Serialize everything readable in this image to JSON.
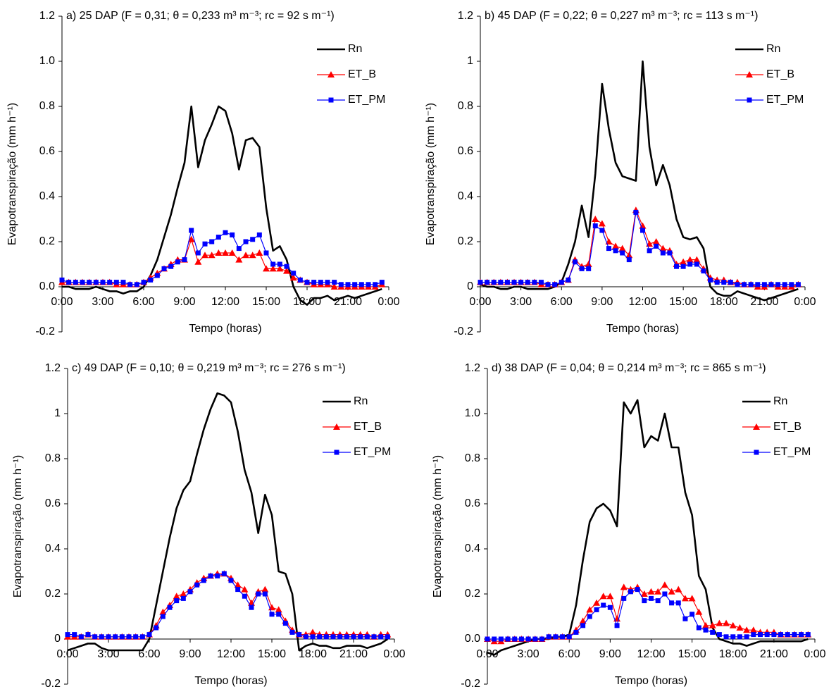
{
  "chart_data": [
    {
      "type": "line",
      "title": "a) 25 DAP (F = 0,31; θ = 0,233 m³ m⁻³; rc = 92 s m⁻¹)",
      "xlabel": "Tempo (horas)",
      "ylabel": "Evapotranspiração (mm h⁻¹)",
      "x": [
        0,
        0.5,
        1,
        1.5,
        2,
        2.5,
        3,
        3.5,
        4,
        4.5,
        5,
        5.5,
        6,
        6.5,
        7,
        7.5,
        8,
        8.5,
        9,
        9.5,
        10,
        10.5,
        11,
        11.5,
        12,
        12.5,
        13,
        13.5,
        14,
        14.5,
        15,
        15.5,
        16,
        16.5,
        17,
        17.5,
        18,
        18.5,
        19,
        19.5,
        20,
        20.5,
        21,
        21.5,
        22,
        22.5,
        23,
        23.5
      ],
      "xlim": [
        0,
        24
      ],
      "xticks": [
        {
          "value": 0,
          "label": "0:00"
        },
        {
          "value": 3,
          "label": "3:00"
        },
        {
          "value": 6,
          "label": "6:00"
        },
        {
          "value": 9,
          "label": "9:00"
        },
        {
          "value": 12,
          "label": "12:00"
        },
        {
          "value": 15,
          "label": "15:00"
        },
        {
          "value": 18,
          "label": "18:00"
        },
        {
          "value": 21,
          "label": "21:00"
        },
        {
          "value": 24,
          "label": "0:00"
        }
      ],
      "ylim": [
        -0.2,
        1.2
      ],
      "yticks": [
        -0.2,
        {
          "value": 0,
          "label": "0.0"
        },
        0.2,
        0.4,
        0.6,
        0.8,
        {
          "value": 1,
          "label": "1.0"
        },
        1.2
      ],
      "series": [
        {
          "name": "Rn",
          "color": "#000000",
          "marker": "none",
          "values": [
            0,
            0,
            -0.01,
            -0.01,
            -0.01,
            0,
            -0.01,
            -0.02,
            -0.02,
            -0.03,
            -0.02,
            -0.02,
            0,
            0.05,
            0.12,
            0.22,
            0.32,
            0.44,
            0.55,
            0.8,
            0.53,
            0.65,
            0.72,
            0.8,
            0.78,
            0.68,
            0.52,
            0.65,
            0.66,
            0.62,
            0.35,
            0.16,
            0.18,
            0.12,
            0,
            -0.06,
            -0.08,
            -0.05,
            -0.05,
            -0.04,
            -0.06,
            -0.05,
            -0.04,
            -0.05,
            -0.04,
            -0.03,
            -0.02,
            -0.01
          ]
        },
        {
          "name": "ET_B",
          "color": "#ff0000",
          "marker": "triangle",
          "values": [
            0.02,
            0.02,
            0.02,
            0.02,
            0.02,
            0.02,
            0.02,
            0.02,
            0.01,
            0.01,
            0.01,
            0.01,
            0.02,
            0.04,
            0.06,
            0.08,
            0.1,
            0.12,
            0.12,
            0.21,
            0.11,
            0.14,
            0.14,
            0.15,
            0.15,
            0.15,
            0.12,
            0.14,
            0.14,
            0.15,
            0.08,
            0.08,
            0.08,
            0.07,
            0.04,
            0.03,
            0.02,
            0.01,
            0.01,
            0.01,
            0,
            0,
            0,
            0,
            0,
            0,
            0,
            0.01
          ]
        },
        {
          "name": "ET_PM",
          "color": "#0000ff",
          "marker": "square",
          "values": [
            0.03,
            0.02,
            0.02,
            0.02,
            0.02,
            0.02,
            0.02,
            0.02,
            0.02,
            0.02,
            0.01,
            0.01,
            0.02,
            0.03,
            0.05,
            0.08,
            0.09,
            0.11,
            0.12,
            0.25,
            0.15,
            0.19,
            0.2,
            0.22,
            0.24,
            0.23,
            0.17,
            0.2,
            0.21,
            0.23,
            0.15,
            0.1,
            0.1,
            0.09,
            0.06,
            0.03,
            0.02,
            0.02,
            0.02,
            0.02,
            0.02,
            0.01,
            0.01,
            0.01,
            0.01,
            0.01,
            0.01,
            0.02
          ]
        }
      ]
    },
    {
      "type": "line",
      "title": "b) 45 DAP (F = 0,22; θ = 0,227 m³ m⁻³; rc = 113 s m⁻¹)",
      "xlabel": "Tempo (horas)",
      "ylabel": "Evapotranspiração (mm h⁻¹)",
      "x": [
        0,
        0.5,
        1,
        1.5,
        2,
        2.5,
        3,
        3.5,
        4,
        4.5,
        5,
        5.5,
        6,
        6.5,
        7,
        7.5,
        8,
        8.5,
        9,
        9.5,
        10,
        10.5,
        11,
        11.5,
        12,
        12.5,
        13,
        13.5,
        14,
        14.5,
        15,
        15.5,
        16,
        16.5,
        17,
        17.5,
        18,
        18.5,
        19,
        19.5,
        20,
        20.5,
        21,
        21.5,
        22,
        22.5,
        23,
        23.5
      ],
      "xlim": [
        0,
        24
      ],
      "xticks": [
        {
          "value": 0,
          "label": "0:00"
        },
        {
          "value": 3,
          "label": "3:00"
        },
        {
          "value": 6,
          "label": "6:00"
        },
        {
          "value": 9,
          "label": "9:00"
        },
        {
          "value": 12,
          "label": "12:00"
        },
        {
          "value": 15,
          "label": "15:00"
        },
        {
          "value": 18,
          "label": "18:00"
        },
        {
          "value": 21,
          "label": "21:00"
        },
        {
          "value": 24,
          "label": "0:00"
        }
      ],
      "ylim": [
        -0.2,
        1.2
      ],
      "yticks": [
        -0.2,
        0,
        0.2,
        0.4,
        0.6,
        0.8,
        1,
        1.2
      ],
      "series": [
        {
          "name": "Rn",
          "color": "#000000",
          "marker": "none",
          "values": [
            0.01,
            0,
            0,
            -0.01,
            -0.01,
            0,
            0,
            -0.01,
            -0.01,
            -0.01,
            -0.01,
            0,
            0.02,
            0.1,
            0.2,
            0.36,
            0.22,
            0.5,
            0.9,
            0.7,
            0.55,
            0.49,
            0.48,
            0.47,
            1,
            0.62,
            0.45,
            0.54,
            0.45,
            0.3,
            0.22,
            0.21,
            0.22,
            0.17,
            0,
            -0.03,
            -0.04,
            -0.04,
            -0.02,
            -0.03,
            -0.04,
            -0.05,
            -0.06,
            -0.05,
            -0.04,
            -0.03,
            -0.02,
            -0.01
          ]
        },
        {
          "name": "ET_B",
          "color": "#ff0000",
          "marker": "triangle",
          "values": [
            0.02,
            0.02,
            0.02,
            0.02,
            0.02,
            0.02,
            0.02,
            0.02,
            0.02,
            0.01,
            0.01,
            0.01,
            0.02,
            0.03,
            0.12,
            0.09,
            0.1,
            0.3,
            0.28,
            0.2,
            0.18,
            0.17,
            0.14,
            0.34,
            0.27,
            0.19,
            0.2,
            0.17,
            0.16,
            0.1,
            0.11,
            0.12,
            0.12,
            0.08,
            0.04,
            0.03,
            0.03,
            0.02,
            0.02,
            0.01,
            0.01,
            0,
            0,
            0.01,
            0,
            0,
            0,
            0.01
          ]
        },
        {
          "name": "ET_PM",
          "color": "#0000ff",
          "marker": "square",
          "values": [
            0.02,
            0.02,
            0.02,
            0.02,
            0.02,
            0.02,
            0.02,
            0.02,
            0.02,
            0.02,
            0.01,
            0.01,
            0.02,
            0.03,
            0.11,
            0.08,
            0.08,
            0.27,
            0.25,
            0.17,
            0.16,
            0.15,
            0.12,
            0.33,
            0.25,
            0.16,
            0.18,
            0.15,
            0.15,
            0.09,
            0.09,
            0.1,
            0.1,
            0.07,
            0.03,
            0.02,
            0.02,
            0.02,
            0.01,
            0.01,
            0.01,
            0.01,
            0.01,
            0.01,
            0.01,
            0.01,
            0.01,
            0.01
          ]
        }
      ]
    },
    {
      "type": "line",
      "title": "c) 49 DAP (F = 0,10; θ = 0,219 m³ m⁻³; rc = 276 s m⁻¹)",
      "xlabel": "Tempo (horas)",
      "ylabel": "Evapotranspiração (mm h⁻¹)",
      "x": [
        0,
        0.5,
        1,
        1.5,
        2,
        2.5,
        3,
        3.5,
        4,
        4.5,
        5,
        5.5,
        6,
        6.5,
        7,
        7.5,
        8,
        8.5,
        9,
        9.5,
        10,
        10.5,
        11,
        11.5,
        12,
        12.5,
        13,
        13.5,
        14,
        14.5,
        15,
        15.5,
        16,
        16.5,
        17,
        17.5,
        18,
        18.5,
        19,
        19.5,
        20,
        20.5,
        21,
        21.5,
        22,
        22.5,
        23,
        23.5
      ],
      "xlim": [
        0,
        24
      ],
      "xticks": [
        {
          "value": 0,
          "label": "0:00"
        },
        {
          "value": 3,
          "label": "3:00"
        },
        {
          "value": 6,
          "label": "6:00"
        },
        {
          "value": 9,
          "label": "9:00"
        },
        {
          "value": 12,
          "label": "12:00"
        },
        {
          "value": 15,
          "label": "15:00"
        },
        {
          "value": 18,
          "label": "18:00"
        },
        {
          "value": 21,
          "label": "21:00"
        },
        {
          "value": 24,
          "label": "0:00"
        }
      ],
      "ylim": [
        -0.2,
        1.2
      ],
      "yticks": [
        -0.2,
        0,
        0.2,
        0.4,
        0.6,
        0.8,
        1,
        1.2
      ],
      "series": [
        {
          "name": "Rn",
          "color": "#000000",
          "marker": "none",
          "values": [
            -0.05,
            -0.04,
            -0.03,
            -0.02,
            -0.02,
            -0.04,
            -0.05,
            -0.05,
            -0.05,
            -0.05,
            -0.05,
            -0.05,
            0,
            0.15,
            0.3,
            0.45,
            0.58,
            0.66,
            0.7,
            0.82,
            0.93,
            1.02,
            1.09,
            1.08,
            1.05,
            0.92,
            0.75,
            0.65,
            0.47,
            0.64,
            0.55,
            0.3,
            0.29,
            0.2,
            -0.05,
            -0.03,
            -0.02,
            -0.03,
            -0.03,
            -0.04,
            -0.04,
            -0.03,
            -0.03,
            -0.03,
            -0.04,
            -0.03,
            -0.02,
            0
          ]
        },
        {
          "name": "ET_B",
          "color": "#ff0000",
          "marker": "triangle",
          "values": [
            0.01,
            0.01,
            0.01,
            0.02,
            0.01,
            0.01,
            0.01,
            0.01,
            0.01,
            0.01,
            0.01,
            0.01,
            0.02,
            0.06,
            0.12,
            0.15,
            0.19,
            0.2,
            0.22,
            0.25,
            0.27,
            0.28,
            0.29,
            0.29,
            0.27,
            0.24,
            0.22,
            0.16,
            0.21,
            0.22,
            0.14,
            0.13,
            0.08,
            0.04,
            0.02,
            0.02,
            0.03,
            0.02,
            0.02,
            0.02,
            0.02,
            0.02,
            0.02,
            0.02,
            0.02,
            0.01,
            0.02,
            0.02
          ]
        },
        {
          "name": "ET_PM",
          "color": "#0000ff",
          "marker": "square",
          "values": [
            0.02,
            0.02,
            0.01,
            0.02,
            0.01,
            0.01,
            0.01,
            0.01,
            0.01,
            0.01,
            0.01,
            0.01,
            0.02,
            0.05,
            0.1,
            0.14,
            0.17,
            0.18,
            0.21,
            0.24,
            0.26,
            0.28,
            0.28,
            0.29,
            0.26,
            0.22,
            0.19,
            0.14,
            0.2,
            0.2,
            0.11,
            0.11,
            0.07,
            0.03,
            0.02,
            0.01,
            0.01,
            0.01,
            0.01,
            0.01,
            0.01,
            0.01,
            0.01,
            0.01,
            0.01,
            0.01,
            0.01,
            0.01
          ]
        }
      ]
    },
    {
      "type": "line",
      "title": "d) 38 DAP (F = 0,04; θ = 0,214 m³ m⁻³; rc = 865 s m⁻¹)",
      "xlabel": "Tempo (horas)",
      "ylabel": "Evapotranspiração (mm h⁻¹)",
      "x": [
        0,
        0.5,
        1,
        1.5,
        2,
        2.5,
        3,
        3.5,
        4,
        4.5,
        5,
        5.5,
        6,
        6.5,
        7,
        7.5,
        8,
        8.5,
        9,
        9.5,
        10,
        10.5,
        11,
        11.5,
        12,
        12.5,
        13,
        13.5,
        14,
        14.5,
        15,
        15.5,
        16,
        16.5,
        17,
        17.5,
        18,
        18.5,
        19,
        19.5,
        20,
        20.5,
        21,
        21.5,
        22,
        22.5,
        23,
        23.5
      ],
      "xlim": [
        0,
        24
      ],
      "xticks": [
        {
          "value": 0,
          "label": "0:00"
        },
        {
          "value": 3,
          "label": "3:00"
        },
        {
          "value": 6,
          "label": "6:00"
        },
        {
          "value": 9,
          "label": "9:00"
        },
        {
          "value": 12,
          "label": "12:00"
        },
        {
          "value": 15,
          "label": "15:00"
        },
        {
          "value": 18,
          "label": "18:00"
        },
        {
          "value": 21,
          "label": "21:00"
        },
        {
          "value": 24,
          "label": "0:00"
        }
      ],
      "ylim": [
        -0.2,
        1.2
      ],
      "yticks": [
        -0.2,
        {
          "value": 0,
          "label": "0.0"
        },
        0.2,
        0.4,
        0.6,
        0.8,
        {
          "value": 1,
          "label": "1.0"
        },
        1.2
      ],
      "series": [
        {
          "name": "Rn",
          "color": "#000000",
          "marker": "none",
          "values": [
            -0.06,
            -0.07,
            -0.05,
            -0.04,
            -0.03,
            -0.02,
            -0.01,
            0,
            0,
            0,
            0.01,
            0.01,
            0.02,
            0.15,
            0.35,
            0.52,
            0.58,
            0.6,
            0.57,
            0.5,
            1.05,
            1,
            1.06,
            0.85,
            0.9,
            0.88,
            1,
            0.85,
            0.85,
            0.65,
            0.55,
            0.28,
            0.22,
            0.05,
            0,
            -0.01,
            -0.02,
            -0.02,
            -0.03,
            -0.02,
            -0.01,
            -0.01,
            -0.01,
            -0.01,
            -0.01,
            -0.01,
            -0.01,
            0
          ]
        },
        {
          "name": "ET_B",
          "color": "#ff0000",
          "marker": "triangle",
          "values": [
            0,
            -0.01,
            -0.01,
            0,
            0,
            0,
            0,
            0,
            0,
            0.01,
            0.01,
            0.01,
            0.01,
            0.04,
            0.08,
            0.13,
            0.16,
            0.19,
            0.19,
            0.09,
            0.23,
            0.22,
            0.23,
            0.2,
            0.21,
            0.21,
            0.24,
            0.21,
            0.22,
            0.18,
            0.18,
            0.12,
            0.06,
            0.06,
            0.07,
            0.07,
            0.06,
            0.05,
            0.04,
            0.04,
            0.03,
            0.03,
            0.03,
            0.02,
            0.02,
            0.02,
            0.02,
            0.02
          ]
        },
        {
          "name": "ET_PM",
          "color": "#0000ff",
          "marker": "square",
          "values": [
            0,
            0,
            0,
            0,
            0,
            0,
            0,
            0,
            0,
            0.01,
            0.01,
            0.01,
            0.01,
            0.03,
            0.06,
            0.1,
            0.13,
            0.15,
            0.14,
            0.06,
            0.18,
            0.21,
            0.22,
            0.17,
            0.18,
            0.17,
            0.2,
            0.16,
            0.16,
            0.09,
            0.11,
            0.05,
            0.04,
            0.03,
            0.02,
            0.01,
            0.01,
            0.01,
            0.01,
            0.02,
            0.02,
            0.02,
            0.02,
            0.02,
            0.02,
            0.02,
            0.02,
            0.02
          ]
        }
      ]
    }
  ]
}
